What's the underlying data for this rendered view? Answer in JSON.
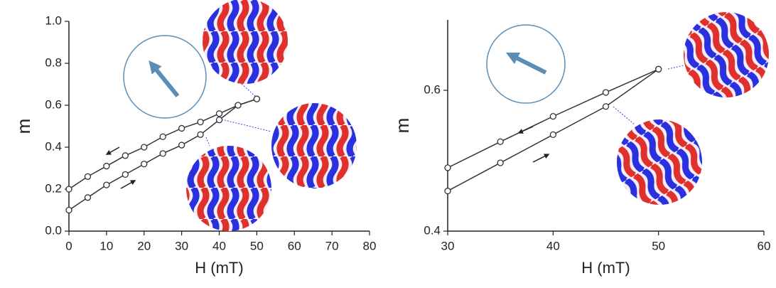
{
  "chart_data": [
    {
      "type": "line",
      "xlabel": "H (mT)",
      "ylabel": "m",
      "x": [
        0,
        5,
        10,
        15,
        20,
        25,
        30,
        35,
        40,
        45,
        50
      ],
      "series": [
        {
          "color": "#333333",
          "values": [
            0.2,
            0.26,
            0.31,
            0.36,
            0.4,
            0.45,
            0.49,
            0.52,
            0.56,
            0.6,
            0.63
          ]
        },
        {
          "color": "#333333",
          "values": [
            0.1,
            0.16,
            0.22,
            0.27,
            0.32,
            0.37,
            0.41,
            0.46,
            0.53,
            0.6,
            0.63
          ]
        }
      ],
      "xlim": [
        0,
        80
      ],
      "xticks": [
        0,
        10,
        20,
        30,
        40,
        50,
        60,
        70,
        80
      ],
      "ylim": [
        0,
        1
      ],
      "yticks": [
        {
          "value": 0,
          "label": "0.0"
        },
        0.2,
        0.4,
        0.6,
        0.8,
        {
          "value": 1,
          "label": "1.0"
        }
      ]
    },
    {
      "type": "line",
      "xlabel": "H (mT)",
      "ylabel": "m",
      "x": [
        30,
        35,
        40,
        45,
        50
      ],
      "series": [
        {
          "color": "#333333",
          "values": [
            0.49,
            0.527,
            0.563,
            0.597,
            0.63
          ]
        },
        {
          "color": "#333333",
          "values": [
            0.457,
            0.497,
            0.537,
            0.577,
            0.63
          ]
        }
      ],
      "xlim": [
        30,
        60
      ],
      "xticks": [
        30,
        40,
        50,
        60
      ],
      "ylim": [
        0.4,
        0.7
      ],
      "yticks": [
        0.4,
        0.6
      ]
    }
  ]
}
